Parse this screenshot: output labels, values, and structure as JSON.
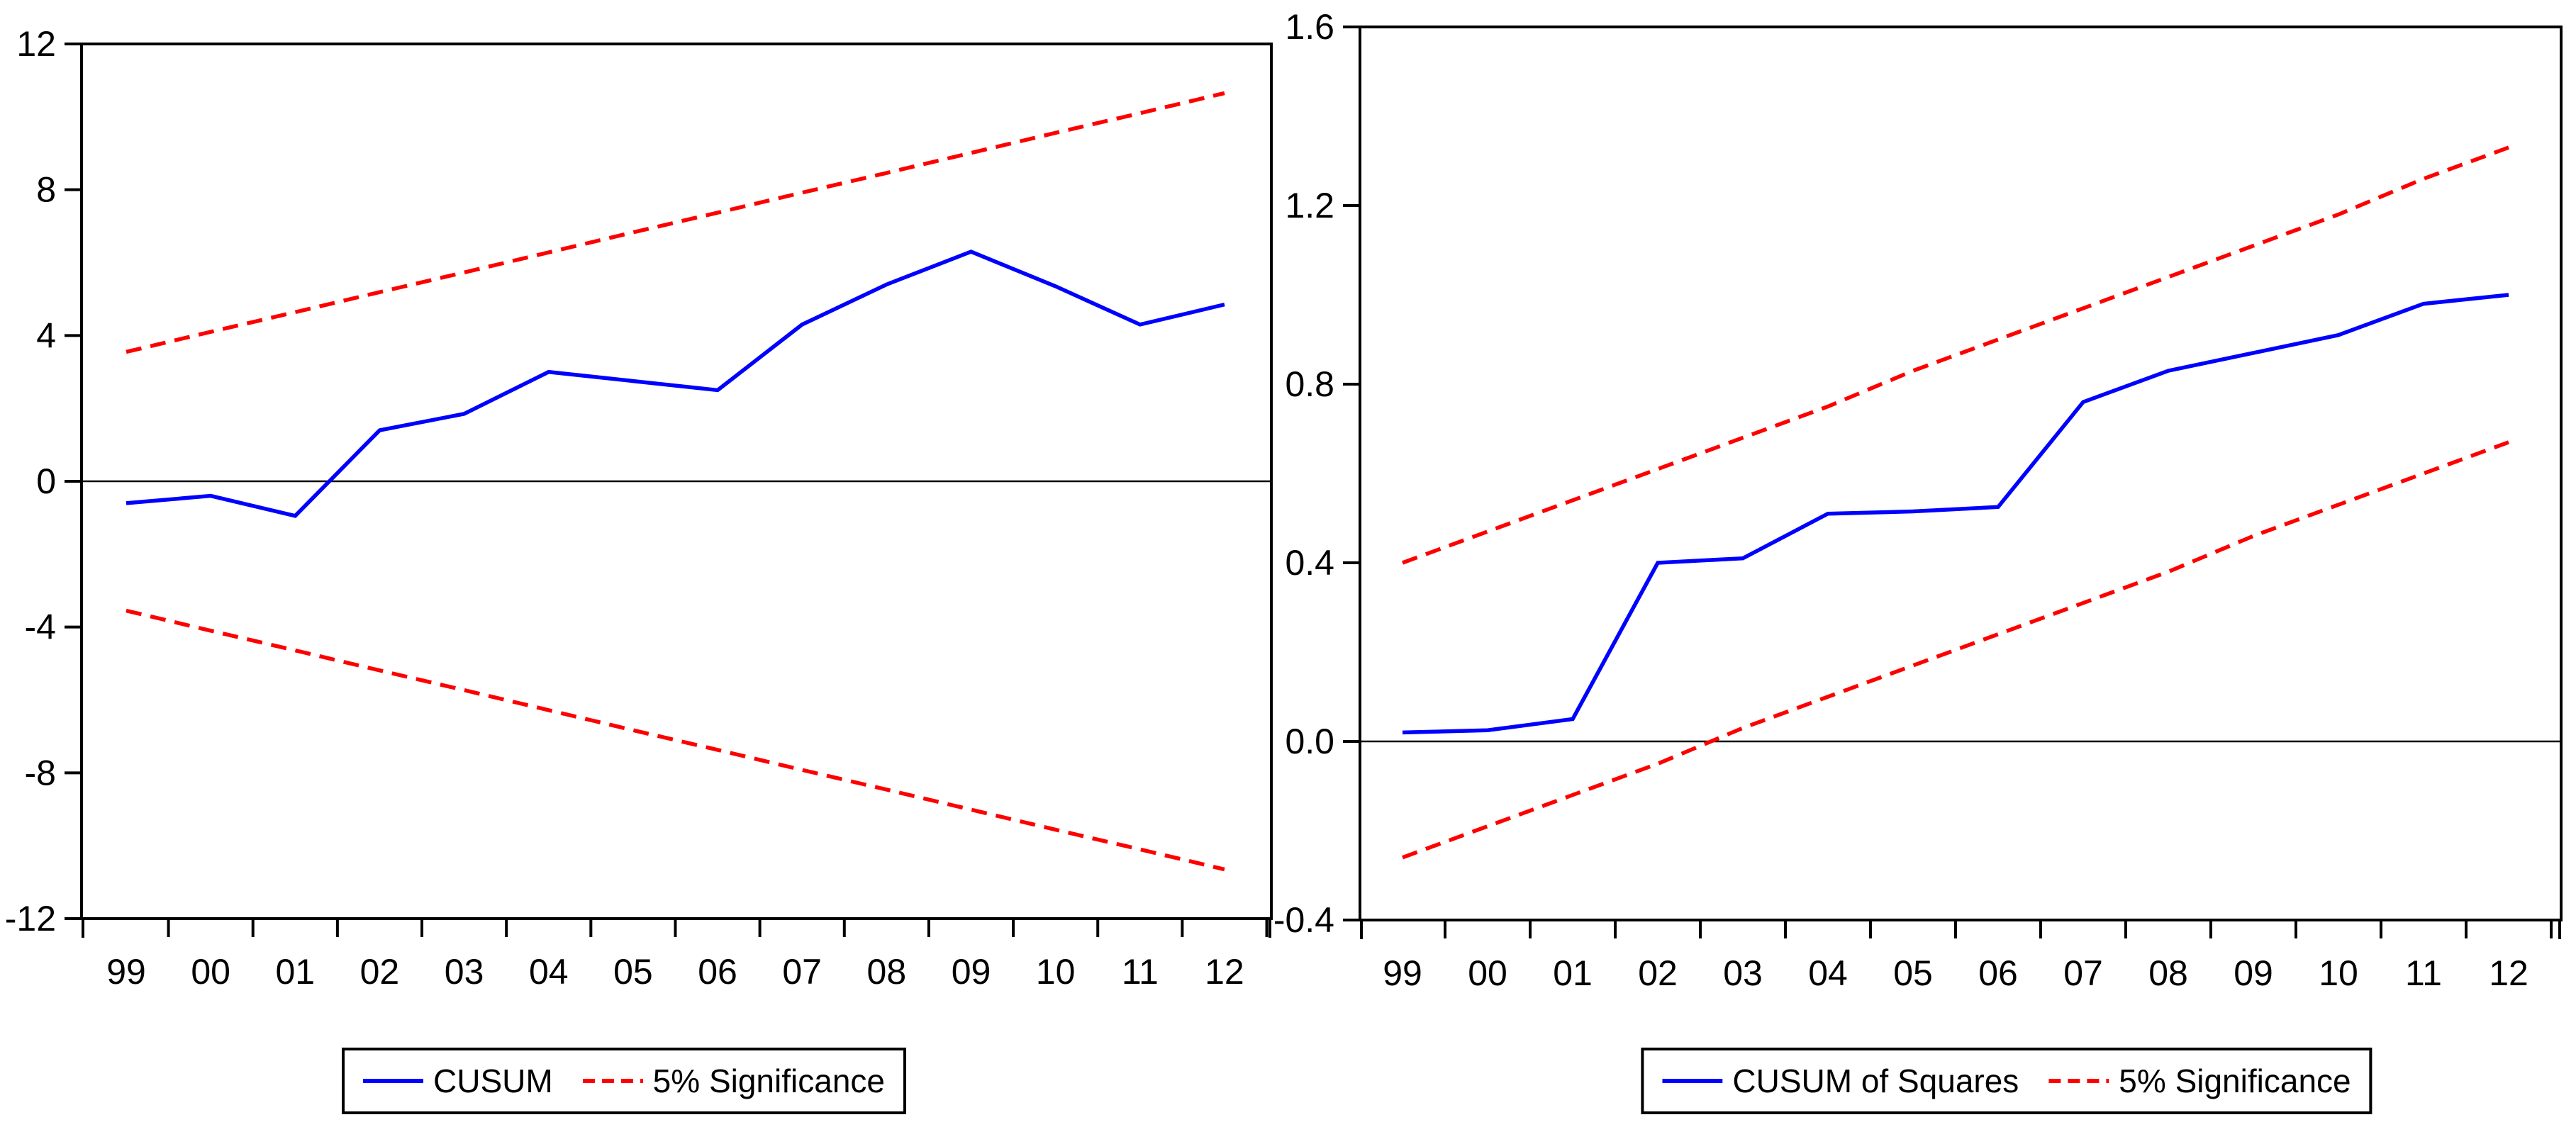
{
  "chart_data": [
    {
      "id": "cusum",
      "type": "line",
      "title": "",
      "xlabel": "",
      "ylabel": "",
      "x_categories": [
        "99",
        "00",
        "01",
        "02",
        "03",
        "04",
        "05",
        "06",
        "07",
        "08",
        "09",
        "10",
        "11",
        "12"
      ],
      "ylim": [
        -12,
        12
      ],
      "yticks": [
        12,
        8,
        4,
        0,
        -4,
        -8,
        -12
      ],
      "ytick_labels": [
        "12",
        "8",
        "4",
        "0",
        "-4",
        "-8",
        "-12"
      ],
      "grid": false,
      "zero_line": true,
      "legend_position": "bottom-center",
      "series": [
        {
          "id": "cusum-line",
          "name": "CUSUM",
          "color": "#0000ff",
          "style": "solid",
          "values": [
            -0.6,
            -0.4,
            -0.95,
            1.4,
            1.85,
            3.0,
            2.75,
            2.5,
            4.3,
            5.4,
            6.3,
            5.35,
            4.3,
            4.85
          ]
        },
        {
          "id": "significance-upper-line",
          "name": "5% Significance (upper)",
          "color": "#ff0000",
          "style": "dashed",
          "values": [
            3.55,
            4.1,
            4.64,
            5.19,
            5.73,
            6.28,
            6.83,
            7.37,
            7.92,
            8.46,
            9.01,
            9.56,
            10.1,
            10.65
          ]
        },
        {
          "id": "significance-lower-line",
          "name": "5% Significance (lower)",
          "color": "#ff0000",
          "style": "dashed",
          "values": [
            -3.55,
            -4.1,
            -4.64,
            -5.19,
            -5.73,
            -6.28,
            -6.83,
            -7.37,
            -7.92,
            -8.46,
            -9.01,
            -9.56,
            -10.1,
            -10.65
          ]
        }
      ],
      "legend": [
        {
          "label": "CUSUM",
          "color": "#0000ff",
          "style": "solid"
        },
        {
          "label": "5% Significance",
          "color": "#ff0000",
          "style": "dashed"
        }
      ]
    },
    {
      "id": "cusumsq",
      "type": "line",
      "title": "",
      "xlabel": "",
      "ylabel": "",
      "x_categories": [
        "99",
        "00",
        "01",
        "02",
        "03",
        "04",
        "05",
        "06",
        "07",
        "08",
        "09",
        "10",
        "11",
        "12"
      ],
      "ylim": [
        -0.4,
        1.6
      ],
      "yticks": [
        1.6,
        1.2,
        0.8,
        0.4,
        0.0,
        -0.4
      ],
      "ytick_labels": [
        "1.6",
        "1.2",
        "0.8",
        "0.4",
        "0.0",
        "-0.4"
      ],
      "grid": false,
      "zero_line": true,
      "legend_position": "bottom-center",
      "series": [
        {
          "id": "cusum-of-squares-line",
          "name": "CUSUM of Squares",
          "color": "#0000ff",
          "style": "solid",
          "values": [
            0.02,
            0.025,
            0.05,
            0.4,
            0.41,
            0.51,
            0.515,
            0.525,
            0.76,
            0.83,
            0.87,
            0.91,
            0.98,
            1.0
          ]
        },
        {
          "id": "significance-upper-line",
          "name": "5% Significance (upper)",
          "color": "#ff0000",
          "style": "dashed",
          "values": [
            0.4,
            0.47,
            0.54,
            0.61,
            0.68,
            0.75,
            0.83,
            0.9,
            0.97,
            1.04,
            1.11,
            1.18,
            1.26,
            1.33
          ]
        },
        {
          "id": "significance-lower-line",
          "name": "5% Significance (lower)",
          "color": "#ff0000",
          "style": "dashed",
          "values": [
            -0.26,
            -0.19,
            -0.12,
            -0.05,
            0.03,
            0.1,
            0.17,
            0.24,
            0.31,
            0.38,
            0.46,
            0.53,
            0.6,
            0.67
          ]
        }
      ],
      "legend": [
        {
          "label": "CUSUM of Squares",
          "color": "#0000ff",
          "style": "solid"
        },
        {
          "label": "5% Significance",
          "color": "#ff0000",
          "style": "dashed"
        }
      ]
    }
  ],
  "colors": {
    "series_blue": "#0000ff",
    "significance_red": "#ff0000",
    "axis": "#000000",
    "background": "#ffffff"
  }
}
